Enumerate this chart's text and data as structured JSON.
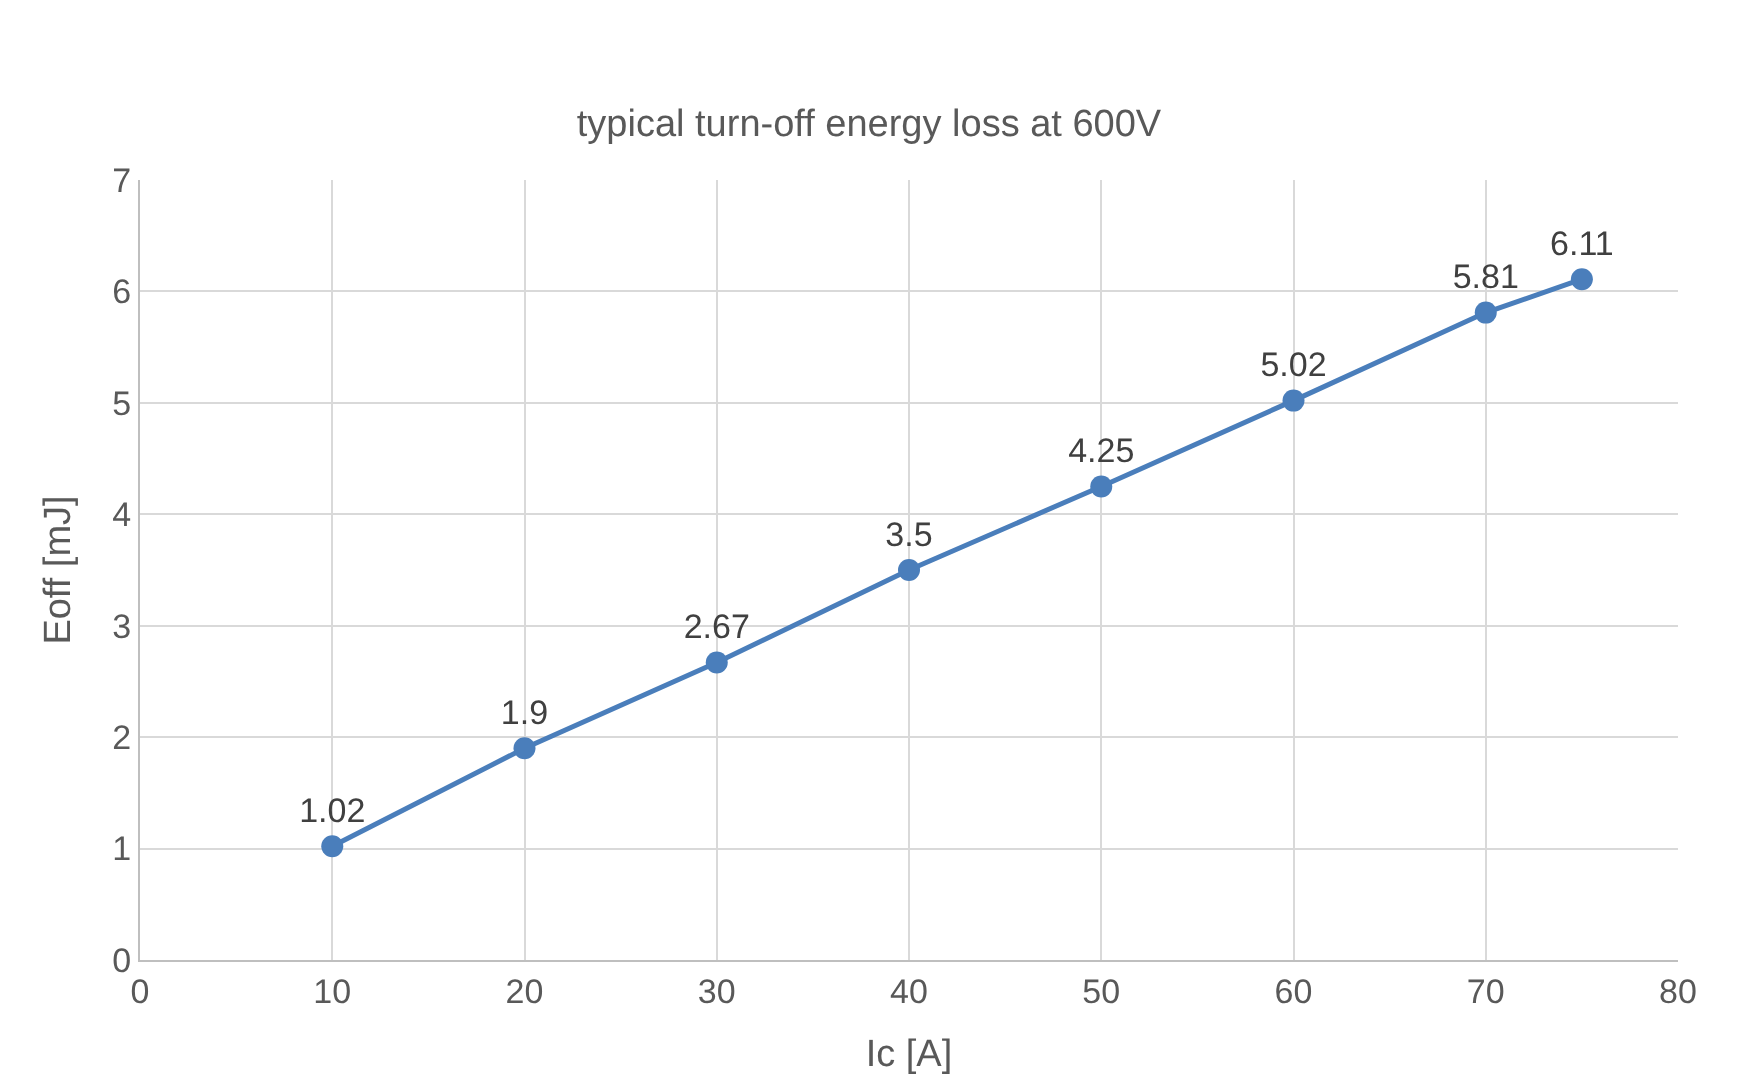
{
  "chart_data": {
    "type": "line",
    "title": "typical turn-off energy loss at 600V",
    "xlabel": "Ic [A]",
    "ylabel": "Eoff [mJ]",
    "x": [
      10,
      20,
      30,
      40,
      50,
      60,
      70,
      75
    ],
    "series": [
      {
        "color": "#4a7ebb",
        "values": [
          1.02,
          1.9,
          2.67,
          3.5,
          4.25,
          5.02,
          5.81,
          6.11
        ]
      }
    ],
    "xlim": [
      0,
      80
    ],
    "xticks": [
      0,
      10,
      20,
      30,
      40,
      50,
      60,
      70,
      80
    ],
    "ylim": [
      0,
      7
    ],
    "yticks": [
      0,
      1,
      2,
      3,
      4,
      5,
      6,
      7
    ],
    "grid": true,
    "marker": "circle",
    "line_style": "solid",
    "data_labels": true,
    "legend": false
  }
}
